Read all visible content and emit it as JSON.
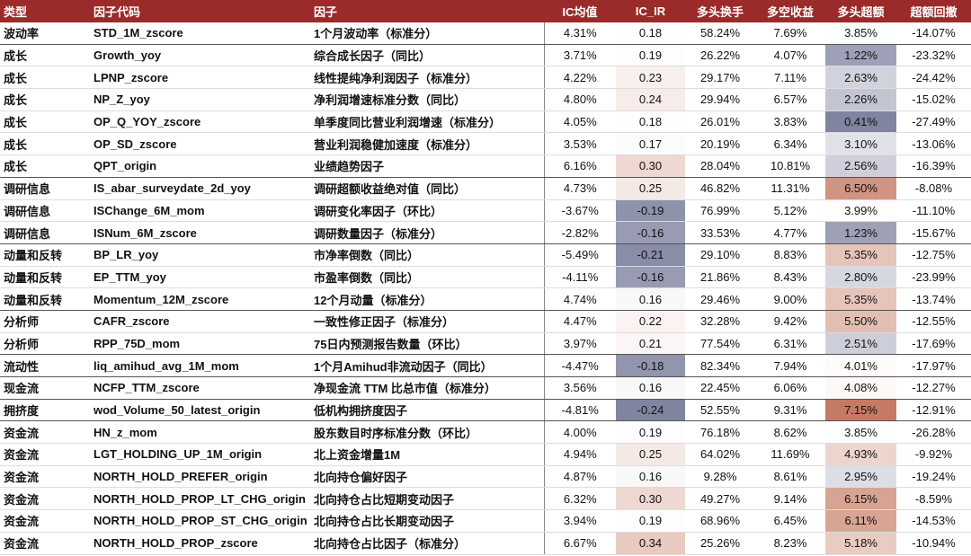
{
  "table": {
    "columns": [
      "类型",
      "因子代码",
      "因子",
      "IC均值",
      "IC_IR",
      "多头换手",
      "多空收益",
      "多头超额",
      "超额回撤"
    ],
    "rows": [
      [
        "波动率",
        "STD_1M_zscore",
        "1个月波动率（标准分）",
        "4.31%",
        "0.18",
        "58.24%",
        "7.69%",
        "3.85%",
        "-14.07%"
      ],
      [
        "成长",
        "Growth_yoy",
        "综合成长因子（同比）",
        "3.71%",
        "0.19",
        "26.22%",
        "4.07%",
        "1.22%",
        "-23.32%"
      ],
      [
        "成长",
        "LPNP_zscore",
        "线性提纯净利润因子（标准分）",
        "4.22%",
        "0.23",
        "29.17%",
        "7.11%",
        "2.63%",
        "-24.42%"
      ],
      [
        "成长",
        "NP_Z_yoy",
        "净利润增速标准分数（同比）",
        "4.80%",
        "0.24",
        "29.94%",
        "6.57%",
        "2.26%",
        "-15.02%"
      ],
      [
        "成长",
        "OP_Q_YOY_zscore",
        "单季度同比营业利润增速（标准分）",
        "4.05%",
        "0.18",
        "26.01%",
        "3.83%",
        "0.41%",
        "-27.49%"
      ],
      [
        "成长",
        "OP_SD_zscore",
        "营业利润稳健加速度（标准分）",
        "3.53%",
        "0.17",
        "20.19%",
        "6.34%",
        "3.10%",
        "-13.06%"
      ],
      [
        "成长",
        "QPT_origin",
        "业绩趋势因子",
        "6.16%",
        "0.30",
        "28.04%",
        "10.81%",
        "2.56%",
        "-16.39%"
      ],
      [
        "调研信息",
        "IS_abar_surveydate_2d_yoy",
        "调研超额收益绝对值（同比）",
        "4.73%",
        "0.25",
        "46.82%",
        "11.31%",
        "6.50%",
        "-8.08%"
      ],
      [
        "调研信息",
        "ISChange_6M_mom",
        "调研变化率因子（环比）",
        "-3.67%",
        "-0.19",
        "76.99%",
        "5.12%",
        "3.99%",
        "-11.10%"
      ],
      [
        "调研信息",
        "ISNum_6M_zscore",
        "调研数量因子（标准分）",
        "-2.82%",
        "-0.16",
        "33.53%",
        "4.77%",
        "1.23%",
        "-15.67%"
      ],
      [
        "动量和反转",
        "BP_LR_yoy",
        "市净率倒数（同比）",
        "-5.49%",
        "-0.21",
        "29.10%",
        "8.83%",
        "5.35%",
        "-12.75%"
      ],
      [
        "动量和反转",
        "EP_TTM_yoy",
        "市盈率倒数（同比）",
        "-4.11%",
        "-0.16",
        "21.86%",
        "8.43%",
        "2.80%",
        "-23.99%"
      ],
      [
        "动量和反转",
        "Momentum_12M_zscore",
        "12个月动量（标准分）",
        "4.74%",
        "0.16",
        "29.46%",
        "9.00%",
        "5.35%",
        "-13.74%"
      ],
      [
        "分析师",
        "CAFR_zscore",
        "一致性修正因子（标准分）",
        "4.47%",
        "0.22",
        "32.28%",
        "9.42%",
        "5.50%",
        "-12.55%"
      ],
      [
        "分析师",
        "RPP_75D_mom",
        "75日内预测报告数量（环比）",
        "3.97%",
        "0.21",
        "77.54%",
        "6.31%",
        "2.51%",
        "-17.69%"
      ],
      [
        "流动性",
        "liq_amihud_avg_1M_mom",
        "1个月Amihud非流动因子（同比）",
        "-4.47%",
        "-0.18",
        "82.34%",
        "7.94%",
        "4.01%",
        "-17.97%"
      ],
      [
        "现金流",
        "NCFP_TTM_zscore",
        "净现金流 TTM 比总市值（标准分）",
        "3.56%",
        "0.16",
        "22.45%",
        "6.06%",
        "4.08%",
        "-12.27%"
      ],
      [
        "拥挤度",
        "wod_Volume_50_latest_origin",
        "低机构拥挤度因子",
        "-4.81%",
        "-0.24",
        "52.55%",
        "9.31%",
        "7.15%",
        "-12.91%"
      ],
      [
        "资金流",
        "HN_z_mom",
        "股东数目时序标准分数（环比）",
        "4.00%",
        "0.19",
        "76.18%",
        "8.62%",
        "3.85%",
        "-26.28%"
      ],
      [
        "资金流",
        "LGT_HOLDING_UP_1M_origin",
        "北上资金增量1M",
        "4.94%",
        "0.25",
        "64.02%",
        "11.69%",
        "4.93%",
        "-9.92%"
      ],
      [
        "资金流",
        "NORTH_HOLD_PREFER_origin",
        "北向持仓偏好因子",
        "4.87%",
        "0.16",
        "9.28%",
        "8.61%",
        "2.95%",
        "-19.24%"
      ],
      [
        "资金流",
        "NORTH_HOLD_PROP_LT_CHG_origin",
        "北向持仓占比短期变动因子",
        "6.32%",
        "0.30",
        "49.27%",
        "9.14%",
        "6.15%",
        "-8.59%"
      ],
      [
        "资金流",
        "NORTH_HOLD_PROP_ST_CHG_origin",
        "北向持仓占比长期变动因子",
        "3.94%",
        "0.19",
        "68.96%",
        "6.45%",
        "6.11%",
        "-14.53%"
      ],
      [
        "资金流",
        "NORTH_HOLD_PROP_zscore",
        "北向持仓占比因子（标准分）",
        "6.67%",
        "0.34",
        "25.26%",
        "8.23%",
        "5.18%",
        "-10.94%"
      ]
    ]
  }
}
